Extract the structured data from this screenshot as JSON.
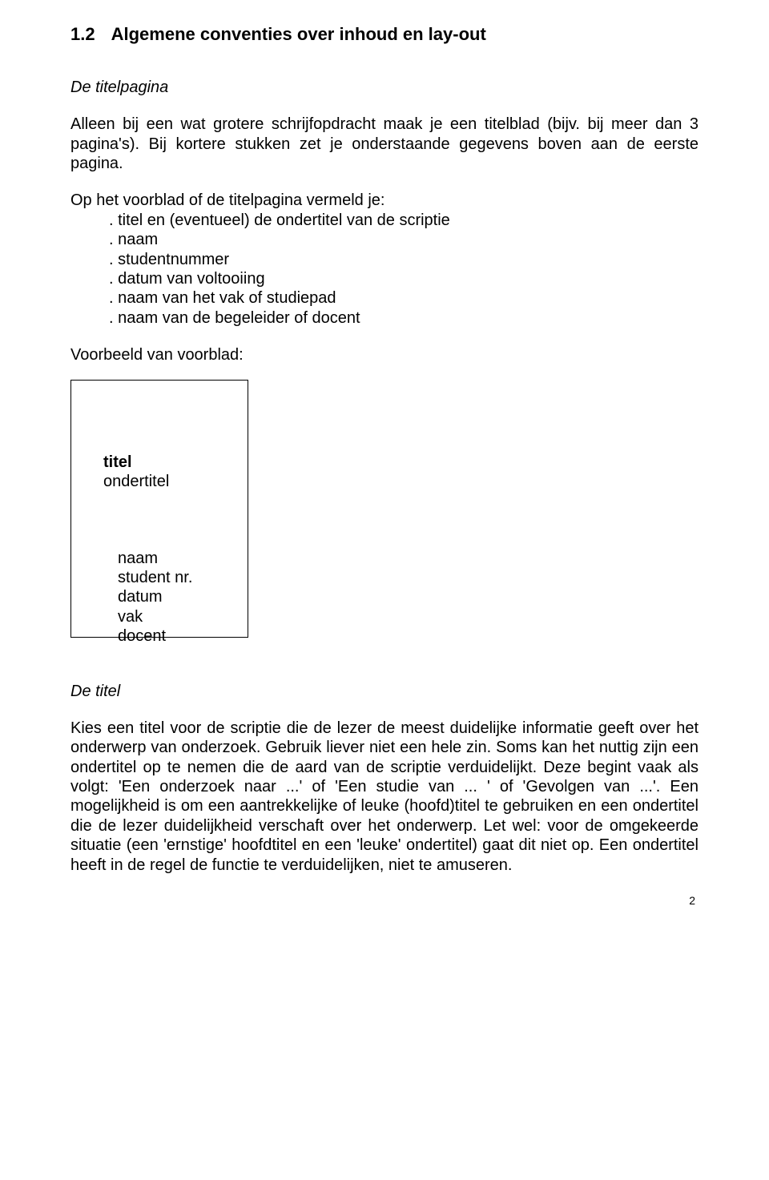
{
  "heading": {
    "number": "1.2",
    "text": "Algemene conventies over inhoud en lay-out"
  },
  "section_titlepage": {
    "heading_italic": "De titelpagina",
    "p1": "Alleen bij een wat grotere schrijfopdracht maak je een titelblad (bijv. bij meer dan 3 pagina's). Bij kortere stukken zet je onderstaande gegevens boven aan de eerste pagina.",
    "p2_intro": "Op het voorblad of de titelpagina vermeld je:",
    "list": [
      ". titel en (eventueel) de ondertitel van de scriptie",
      ". naam",
      ". studentnummer",
      ". datum van voltooiing",
      ". naam van het vak of studiepad",
      ". naam van de begeleider of docent"
    ],
    "example_label": "Voorbeeld van voorblad:"
  },
  "voorblad": {
    "title": "titel",
    "subtitle": "ondertitel",
    "detail_lines": [
      "naam",
      "student nr.",
      "datum",
      "vak",
      "docent"
    ]
  },
  "section_title": {
    "heading_italic": "De titel",
    "p1": "Kies een titel voor de scriptie die de lezer de meest duidelijke informatie geeft over het onderwerp van onderzoek. Gebruik liever niet een hele zin. Soms kan het nuttig zijn een ondertitel op te nemen die de aard van de scriptie verduidelijkt. Deze begint vaak als volgt: 'Een onderzoek naar ...' of 'Een studie van ... ' of 'Gevolgen van ...'. Een mogelijkheid is om een aantrekkelijke of leuke (hoofd)titel te gebruiken en een ondertitel die de lezer duidelijkheid verschaft over het onderwerp. Let wel: voor de omgekeerde situatie (een 'ernstige' hoofdtitel en een 'leuke' ondertitel) gaat dit niet op. Een ondertitel heeft in de regel de functie te verduidelijken, niet te amuseren."
  },
  "page_number": "2"
}
